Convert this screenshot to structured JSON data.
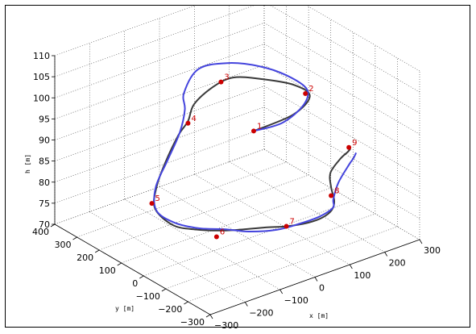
{
  "chart_data": {
    "type": "line",
    "projection": "3d",
    "xlabel": "x [m]",
    "ylabel": "y [m]",
    "zlabel": "h [m]",
    "xlim": [
      -300,
      300
    ],
    "ylim": [
      -300,
      400
    ],
    "zlim": [
      70,
      110
    ],
    "x_ticks": [
      "−300",
      "−200",
      "−100",
      "0",
      "100",
      "200",
      "300"
    ],
    "y_ticks": [
      "400",
      "300",
      "200",
      "100",
      "0",
      "−100",
      "−200",
      "−300"
    ],
    "z_ticks": [
      "110",
      "105",
      "100",
      "95",
      "90",
      "85",
      "80",
      "75",
      "70"
    ],
    "grid": true,
    "series": [
      {
        "color": "#3a3a3a",
        "points": [
          [
            -10,
            -40,
            97
          ],
          [
            90,
            -60,
            98.5
          ],
          [
            170,
            -10,
            99
          ],
          [
            170,
            60,
            99.5
          ],
          [
            120,
            120,
            100.5
          ],
          [
            60,
            160,
            101.5
          ],
          [
            0,
            160,
            101
          ],
          [
            -60,
            150,
            99
          ],
          [
            -90,
            130,
            96.5
          ],
          [
            -130,
            110,
            95
          ],
          [
            -200,
            60,
            92
          ],
          [
            -250,
            20,
            89
          ],
          [
            -280,
            -20,
            86
          ],
          [
            -260,
            -70,
            83
          ],
          [
            -220,
            -110,
            82
          ],
          [
            -170,
            -150,
            81.5
          ],
          [
            -130,
            -180,
            81.5
          ],
          [
            -90,
            -220,
            82
          ],
          [
            -50,
            -250,
            82
          ],
          [
            0,
            -270,
            82
          ],
          [
            40,
            -270,
            82
          ],
          [
            80,
            -250,
            82
          ],
          [
            100,
            -230,
            83
          ],
          [
            110,
            -200,
            85
          ],
          [
            140,
            -150,
            86
          ],
          [
            200,
            -100,
            86
          ],
          [
            240,
            -70,
            85.5
          ],
          [
            260,
            -50,
            85
          ]
        ]
      },
      {
        "color": "#4444dd",
        "points": [
          [
            -10,
            -40,
            97
          ],
          [
            60,
            -60,
            97.5
          ],
          [
            140,
            -30,
            98.5
          ],
          [
            180,
            20,
            99.5
          ],
          [
            160,
            80,
            101.5
          ],
          [
            120,
            140,
            103
          ],
          [
            60,
            190,
            104
          ],
          [
            -10,
            210,
            104
          ],
          [
            -70,
            180,
            101
          ],
          [
            -80,
            160,
            98
          ],
          [
            -120,
            120,
            95
          ],
          [
            -180,
            80,
            91.5
          ],
          [
            -240,
            40,
            88
          ],
          [
            -270,
            -10,
            85
          ],
          [
            -250,
            -60,
            83
          ],
          [
            -210,
            -110,
            82
          ],
          [
            -160,
            -150,
            81.5
          ],
          [
            -120,
            -190,
            81
          ],
          [
            -70,
            -240,
            81.5
          ],
          [
            -20,
            -260,
            82
          ],
          [
            40,
            -260,
            82
          ],
          [
            90,
            -240,
            82
          ],
          [
            110,
            -210,
            82.5
          ],
          [
            150,
            -170,
            84
          ],
          [
            220,
            -110,
            84.5
          ],
          [
            250,
            -80,
            84
          ],
          [
            270,
            -60,
            84
          ]
        ]
      }
    ],
    "waypoints": [
      {
        "label": "1",
        "x": -10,
        "y": -40,
        "z": 97
      },
      {
        "label": "2",
        "x": 170,
        "y": 10,
        "z": 99
      },
      {
        "label": "3",
        "x": 30,
        "y": 170,
        "z": 101
      },
      {
        "label": "4",
        "x": -90,
        "y": 130,
        "z": 96
      },
      {
        "label": "5",
        "x": -270,
        "y": 10,
        "z": 86
      },
      {
        "label": "6",
        "x": -180,
        "y": -140,
        "z": 80
      },
      {
        "label": "7",
        "x": -50,
        "y": -250,
        "z": 82
      },
      {
        "label": "8",
        "x": 110,
        "y": -200,
        "z": 83
      },
      {
        "label": "9",
        "x": 250,
        "y": -60,
        "z": 86
      }
    ],
    "waypoint_color": "#cc0000"
  }
}
